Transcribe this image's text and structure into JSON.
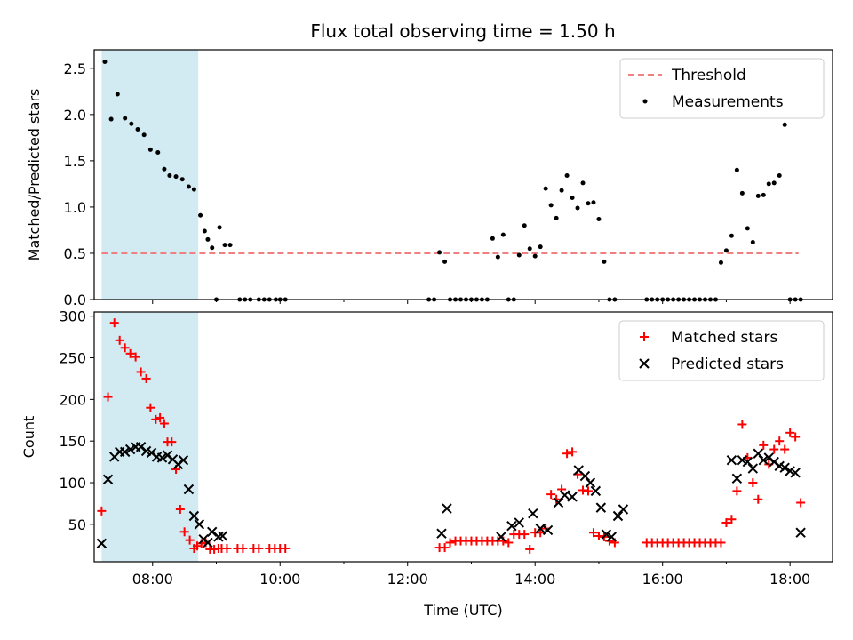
{
  "chart_data": [
    {
      "type": "scatter",
      "title": "Flux total observing time = 1.50 h",
      "xlabel": "",
      "ylabel": "Matched/Predicted stars",
      "xlim": [
        "07:05",
        "18:40"
      ],
      "ylim": [
        0,
        2.7
      ],
      "yticks": [
        0.0,
        0.5,
        1.0,
        1.5,
        2.0,
        2.5
      ],
      "ytick_labels": [
        "0.0",
        "0.5",
        "1.0",
        "1.5",
        "2.0",
        "2.5"
      ],
      "xticks": [
        "08:00",
        "10:00",
        "12:00",
        "14:00",
        "16:00",
        "18:00"
      ],
      "show_xtick_labels": false,
      "grid": false,
      "legend_placement": "top-right",
      "highlight_span": {
        "x0": "07:12",
        "x1": "08:43",
        "color": "#add8e6"
      },
      "series": [
        {
          "name": "Threshold",
          "style": "dashed-line",
          "color": "#f08080",
          "x": [
            "07:12",
            "18:08"
          ],
          "y": [
            0.5,
            0.5
          ]
        },
        {
          "name": "Measurements",
          "style": "dot",
          "color": "#000000",
          "x": [
            "07:15",
            "07:21",
            "07:27",
            "07:34",
            "07:40",
            "07:46",
            "07:52",
            "07:58",
            "08:05",
            "08:11",
            "08:16",
            "08:22",
            "08:28",
            "08:34",
            "08:39",
            "08:45",
            "08:49",
            "08:52",
            "08:56",
            "09:00",
            "09:03",
            "09:08",
            "09:13",
            "09:22",
            "09:27",
            "09:32",
            "09:40",
            "09:45",
            "09:50",
            "09:56",
            "10:00",
            "10:05",
            "12:20",
            "12:25",
            "12:30",
            "12:35",
            "12:40",
            "12:45",
            "12:50",
            "12:55",
            "13:00",
            "13:05",
            "13:10",
            "13:15",
            "13:20",
            "13:25",
            "13:30",
            "13:35",
            "13:40",
            "13:45",
            "13:50",
            "13:55",
            "14:00",
            "14:05",
            "14:10",
            "14:15",
            "14:20",
            "14:25",
            "14:30",
            "14:35",
            "14:40",
            "14:45",
            "14:50",
            "14:55",
            "15:00",
            "15:05",
            "15:10",
            "15:15",
            "15:45",
            "15:50",
            "15:55",
            "16:00",
            "16:05",
            "16:10",
            "16:15",
            "16:20",
            "16:25",
            "16:30",
            "16:35",
            "16:40",
            "16:45",
            "16:50",
            "16:55",
            "17:00",
            "17:05",
            "17:10",
            "17:15",
            "17:20",
            "17:25",
            "17:30",
            "17:35",
            "17:40",
            "17:45",
            "17:50",
            "17:55",
            "18:00",
            "18:05",
            "18:10"
          ],
          "y": [
            2.57,
            1.95,
            2.22,
            1.96,
            1.9,
            1.84,
            1.78,
            1.62,
            1.59,
            1.41,
            1.34,
            1.33,
            1.3,
            1.22,
            1.19,
            0.91,
            0.74,
            0.65,
            0.56,
            0.0,
            0.78,
            0.59,
            0.59,
            0.0,
            0.0,
            0.0,
            0.0,
            0.0,
            0.0,
            0.0,
            0.0,
            0.0,
            0.0,
            0.0,
            0.51,
            0.41,
            0.0,
            0.0,
            0.0,
            0.0,
            0.0,
            0.0,
            0.0,
            0.0,
            0.66,
            0.46,
            0.7,
            0.0,
            0.0,
            0.48,
            0.8,
            0.55,
            0.47,
            0.57,
            1.2,
            1.02,
            0.88,
            1.18,
            1.34,
            1.1,
            0.99,
            1.26,
            1.04,
            1.05,
            0.87,
            0.41,
            0.0,
            0.0,
            0.0,
            0.0,
            0.0,
            0.0,
            0.0,
            0.0,
            0.0,
            0.0,
            0.0,
            0.0,
            0.0,
            0.0,
            0.0,
            0.0,
            0.4,
            0.53,
            0.69,
            1.4,
            1.15,
            0.77,
            0.62,
            1.12,
            1.13,
            1.25,
            1.26,
            1.34,
            1.89,
            0.0,
            0.0,
            0.0
          ]
        }
      ]
    },
    {
      "type": "scatter",
      "title": "",
      "xlabel": "Time (UTC)",
      "ylabel": "Count",
      "xlim": [
        "07:05",
        "18:40"
      ],
      "ylim": [
        5,
        305
      ],
      "yticks": [
        50,
        100,
        150,
        200,
        250,
        300
      ],
      "ytick_labels": [
        "50",
        "100",
        "150",
        "200",
        "250",
        "300"
      ],
      "xticks": [
        "08:00",
        "10:00",
        "12:00",
        "14:00",
        "16:00",
        "18:00"
      ],
      "xtick_labels": [
        "08:00",
        "10:00",
        "12:00",
        "14:00",
        "16:00",
        "18:00"
      ],
      "grid": false,
      "legend_placement": "top-right",
      "highlight_span": {
        "x0": "07:12",
        "x1": "08:43",
        "color": "#add8e6"
      },
      "series": [
        {
          "name": "Matched stars",
          "style": "plus",
          "color": "#ff0000",
          "x": [
            "07:12",
            "07:18",
            "07:24",
            "07:29",
            "07:34",
            "07:39",
            "07:44",
            "07:49",
            "07:54",
            "07:58",
            "08:03",
            "08:07",
            "08:11",
            "08:14",
            "08:18",
            "08:22",
            "08:26",
            "08:30",
            "08:35",
            "08:39",
            "08:42",
            "08:46",
            "08:50",
            "08:54",
            "08:58",
            "09:02",
            "09:05",
            "09:10",
            "09:20",
            "09:25",
            "09:35",
            "09:40",
            "09:50",
            "09:55",
            "10:00",
            "10:05",
            "12:30",
            "12:35",
            "12:40",
            "12:45",
            "12:50",
            "12:55",
            "13:00",
            "13:05",
            "13:10",
            "13:15",
            "13:20",
            "13:25",
            "13:30",
            "13:35",
            "13:40",
            "13:45",
            "13:50",
            "13:55",
            "14:00",
            "14:05",
            "14:10",
            "14:15",
            "14:20",
            "14:25",
            "14:30",
            "14:35",
            "14:40",
            "14:45",
            "14:50",
            "14:55",
            "15:00",
            "15:05",
            "15:10",
            "15:15",
            "15:45",
            "15:50",
            "15:55",
            "16:00",
            "16:05",
            "16:10",
            "16:15",
            "16:20",
            "16:25",
            "16:30",
            "16:35",
            "16:40",
            "16:45",
            "16:50",
            "16:55",
            "17:00",
            "17:05",
            "17:10",
            "17:15",
            "17:20",
            "17:25",
            "17:30",
            "17:35",
            "17:40",
            "17:45",
            "17:50",
            "17:55",
            "18:00",
            "18:05",
            "18:10"
          ],
          "y": [
            66,
            203,
            292,
            271,
            262,
            255,
            251,
            233,
            225,
            190,
            176,
            178,
            171,
            149,
            149,
            116,
            68,
            41,
            31,
            21,
            24,
            27,
            28,
            20,
            20,
            21,
            21,
            21,
            21,
            21,
            21,
            21,
            21,
            21,
            21,
            21,
            22,
            22,
            28,
            30,
            30,
            30,
            30,
            30,
            30,
            30,
            30,
            30,
            30,
            28,
            38,
            38,
            38,
            20,
            40,
            40,
            45,
            86,
            80,
            92,
            135,
            137,
            110,
            91,
            90,
            40,
            36,
            35,
            30,
            28,
            28,
            28,
            28,
            28,
            28,
            28,
            28,
            28,
            28,
            28,
            28,
            28,
            28,
            28,
            28,
            52,
            56,
            90,
            170,
            130,
            100,
            80,
            145,
            122,
            140,
            150,
            140,
            160,
            155,
            76
          ]
        },
        {
          "name": "Predicted stars",
          "style": "x",
          "color": "#000000",
          "x": [
            "07:12",
            "07:18",
            "07:24",
            "07:29",
            "07:34",
            "07:39",
            "07:44",
            "07:49",
            "07:54",
            "07:59",
            "08:04",
            "08:09",
            "08:14",
            "08:19",
            "08:24",
            "08:29",
            "08:34",
            "08:39",
            "08:44",
            "08:48",
            "08:52",
            "08:56",
            "09:02",
            "09:06",
            "12:32",
            "12:37",
            "13:28",
            "13:38",
            "13:45",
            "13:58",
            "14:05",
            "14:12",
            "14:22",
            "14:28",
            "14:35",
            "14:41",
            "14:47",
            "14:52",
            "14:57",
            "15:02",
            "15:07",
            "15:12",
            "15:18",
            "15:23",
            "17:05",
            "17:10",
            "17:15",
            "17:20",
            "17:25",
            "17:30",
            "17:35",
            "17:40",
            "17:45",
            "17:50",
            "17:55",
            "18:00",
            "18:05",
            "18:10"
          ],
          "y": [
            27,
            104,
            131,
            137,
            137,
            140,
            143,
            143,
            138,
            136,
            131,
            130,
            133,
            128,
            122,
            127,
            92,
            60,
            50,
            32,
            28,
            41,
            35,
            36,
            39,
            69,
            35,
            48,
            52,
            63,
            45,
            43,
            76,
            85,
            83,
            115,
            108,
            100,
            90,
            70,
            38,
            35,
            60,
            68,
            127,
            105,
            127,
            125,
            117,
            135,
            127,
            130,
            125,
            120,
            118,
            114,
            112,
            40
          ]
        }
      ]
    }
  ]
}
